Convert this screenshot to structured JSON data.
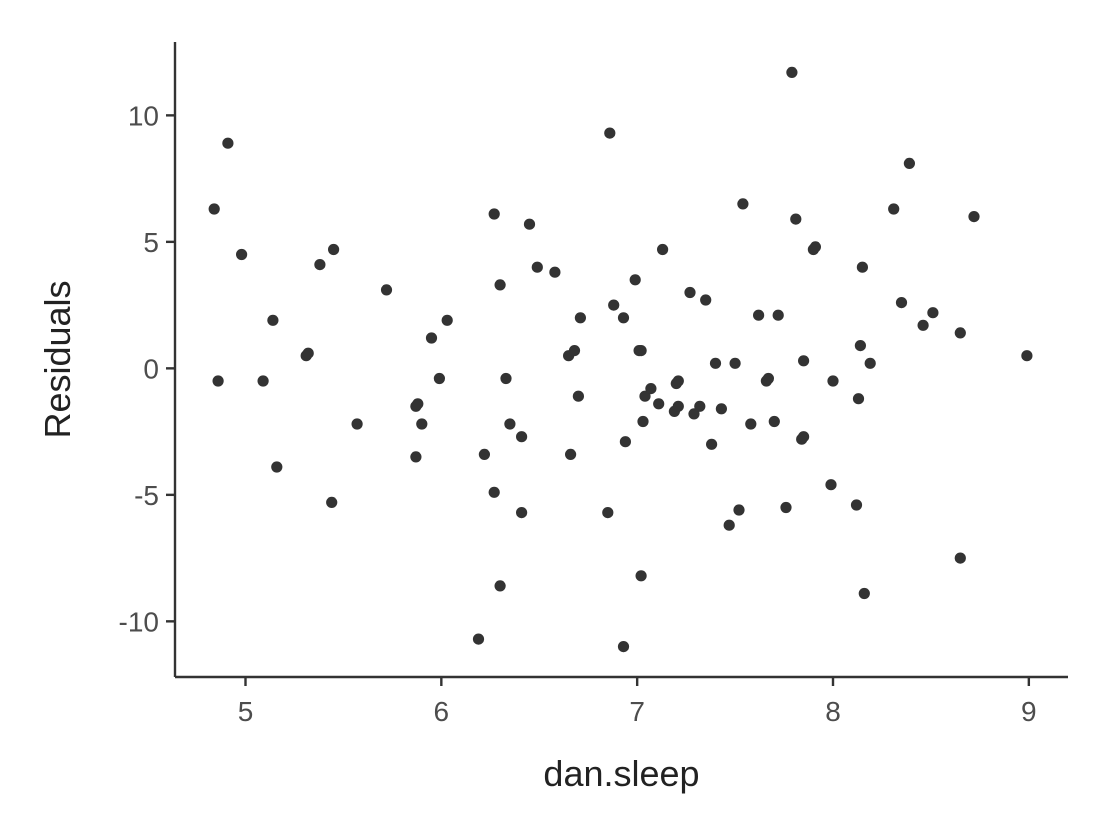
{
  "chart_data": {
    "type": "scatter",
    "xlabel": "dan.sleep",
    "ylabel": "Residuals",
    "xlim": [
      4.64,
      9.2
    ],
    "ylim": [
      -12.2,
      12.9
    ],
    "xticks": [
      5,
      6,
      7,
      8,
      9
    ],
    "yticks": [
      -10,
      -5,
      0,
      5,
      10
    ],
    "grid": false,
    "point_color": "#333333",
    "points": [
      [
        4.84,
        6.3
      ],
      [
        4.86,
        -0.5
      ],
      [
        4.91,
        8.9
      ],
      [
        4.98,
        4.5
      ],
      [
        5.09,
        -0.5
      ],
      [
        5.14,
        1.9
      ],
      [
        5.16,
        -3.9
      ],
      [
        5.31,
        0.5
      ],
      [
        5.32,
        0.6
      ],
      [
        5.38,
        4.1
      ],
      [
        5.44,
        -5.3
      ],
      [
        5.45,
        4.7
      ],
      [
        5.57,
        -2.2
      ],
      [
        5.72,
        3.1
      ],
      [
        5.87,
        -3.5
      ],
      [
        5.87,
        -1.5
      ],
      [
        5.88,
        -1.4
      ],
      [
        5.9,
        -2.2
      ],
      [
        5.95,
        1.2
      ],
      [
        5.99,
        -0.4
      ],
      [
        6.03,
        1.9
      ],
      [
        6.19,
        -10.7
      ],
      [
        6.22,
        -3.4
      ],
      [
        6.27,
        -4.9
      ],
      [
        6.27,
        6.1
      ],
      [
        6.3,
        3.3
      ],
      [
        6.3,
        -8.6
      ],
      [
        6.33,
        -0.4
      ],
      [
        6.35,
        -2.2
      ],
      [
        6.41,
        -2.7
      ],
      [
        6.41,
        -5.7
      ],
      [
        6.45,
        5.7
      ],
      [
        6.49,
        4.0
      ],
      [
        6.58,
        3.8
      ],
      [
        6.65,
        0.5
      ],
      [
        6.66,
        -3.4
      ],
      [
        6.68,
        0.7
      ],
      [
        6.7,
        -1.1
      ],
      [
        6.71,
        2.0
      ],
      [
        6.85,
        -5.7
      ],
      [
        6.86,
        9.3
      ],
      [
        6.88,
        2.5
      ],
      [
        6.93,
        2.0
      ],
      [
        6.93,
        -11.0
      ],
      [
        6.94,
        -2.9
      ],
      [
        6.99,
        3.5
      ],
      [
        7.01,
        0.7
      ],
      [
        7.02,
        0.7
      ],
      [
        7.02,
        -8.2
      ],
      [
        7.03,
        -2.1
      ],
      [
        7.04,
        -1.1
      ],
      [
        7.07,
        -0.8
      ],
      [
        7.11,
        -1.4
      ],
      [
        7.13,
        4.7
      ],
      [
        7.19,
        -1.7
      ],
      [
        7.2,
        -0.6
      ],
      [
        7.21,
        -0.5
      ],
      [
        7.21,
        -1.5
      ],
      [
        7.27,
        3.0
      ],
      [
        7.29,
        -1.8
      ],
      [
        7.32,
        -1.5
      ],
      [
        7.35,
        2.7
      ],
      [
        7.38,
        -3.0
      ],
      [
        7.4,
        0.2
      ],
      [
        7.43,
        -1.6
      ],
      [
        7.47,
        -6.2
      ],
      [
        7.5,
        0.2
      ],
      [
        7.52,
        -5.6
      ],
      [
        7.54,
        6.5
      ],
      [
        7.58,
        -2.2
      ],
      [
        7.62,
        2.1
      ],
      [
        7.66,
        -0.5
      ],
      [
        7.67,
        -0.4
      ],
      [
        7.7,
        -2.1
      ],
      [
        7.72,
        2.1
      ],
      [
        7.76,
        -5.5
      ],
      [
        7.79,
        11.7
      ],
      [
        7.81,
        5.9
      ],
      [
        7.84,
        -2.8
      ],
      [
        7.85,
        -2.7
      ],
      [
        7.85,
        0.3
      ],
      [
        7.9,
        4.7
      ],
      [
        7.91,
        4.8
      ],
      [
        7.99,
        -4.6
      ],
      [
        8.0,
        -0.5
      ],
      [
        8.12,
        -5.4
      ],
      [
        8.13,
        -1.2
      ],
      [
        8.14,
        0.9
      ],
      [
        8.15,
        4.0
      ],
      [
        8.16,
        -8.9
      ],
      [
        8.19,
        0.2
      ],
      [
        8.31,
        6.3
      ],
      [
        8.35,
        2.6
      ],
      [
        8.39,
        8.1
      ],
      [
        8.46,
        1.7
      ],
      [
        8.51,
        2.2
      ],
      [
        8.65,
        1.4
      ],
      [
        8.65,
        -7.5
      ],
      [
        8.72,
        6.0
      ],
      [
        8.99,
        0.5
      ]
    ]
  }
}
